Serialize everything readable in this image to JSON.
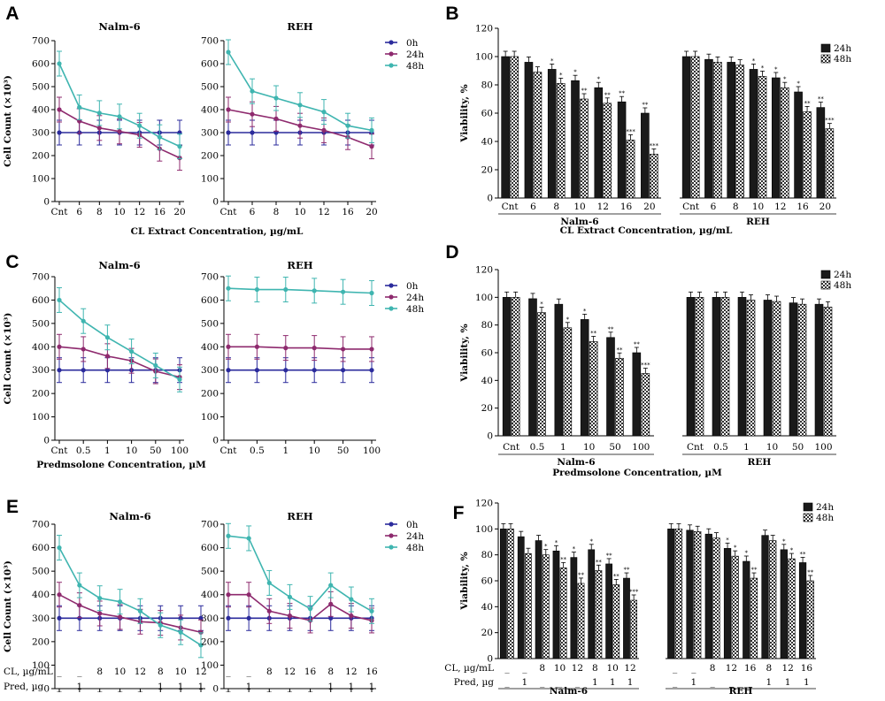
{
  "panels": {
    "A": {
      "label": "A",
      "xlabel": "CL Extract Concentration, µg/mL",
      "ylabel": "Cell Count (×10³)"
    },
    "B": {
      "label": "B",
      "xlabel": "CL Extract Concentration, µg/mL",
      "ylabel": "Viability, %"
    },
    "C": {
      "label": "C",
      "xlabel": "Predmsolone  Concentration, µM",
      "ylabel": "Cell Count (×10³)"
    },
    "D": {
      "label": "D",
      "xlabel": "Predmsolone  Concentration, µM",
      "ylabel": "Viability, %"
    },
    "E": {
      "label": "E",
      "xlabel": "",
      "ylabel": "Cell Count (×10³)",
      "row_labels": [
        "CL, µg/mL",
        "Pred, µg"
      ]
    },
    "F": {
      "label": "F",
      "xlabel": "",
      "ylabel": "Viability, %",
      "row_labels": [
        "CL, µg/mL",
        "Pred, µg"
      ]
    }
  },
  "colors": {
    "h0": "#2b2b9c",
    "h24": "#8e2a6e",
    "h48": "#3fb5b0",
    "bar24": "#1a1a1a",
    "bar48": "#8a8a8a"
  },
  "chart_data": [
    {
      "id": "A",
      "type": "line",
      "xlabel": "CL Extract Concentration, µg/mL",
      "ylabel": "Cell Count (×10³)",
      "ylim": [
        0,
        700
      ],
      "yticks": [
        0,
        100,
        200,
        300,
        400,
        500,
        600,
        700
      ],
      "legend_position": "right",
      "subplots": [
        {
          "title": "Nalm-6",
          "categories": [
            "Cnt",
            "6",
            "8",
            "10",
            "12",
            "16",
            "20"
          ],
          "series": [
            {
              "name": "0h",
              "values": [
                300,
                300,
                300,
                300,
                300,
                300,
                300
              ]
            },
            {
              "name": "24h",
              "values": [
                400,
                350,
                320,
                305,
                290,
                230,
                190
              ]
            },
            {
              "name": "48h",
              "values": [
                600,
                410,
                385,
                370,
                330,
                280,
                240
              ]
            }
          ]
        },
        {
          "title": "REH",
          "categories": [
            "Cnt",
            "6",
            "8",
            "10",
            "12",
            "16",
            "20"
          ],
          "series": [
            {
              "name": "0h",
              "values": [
                300,
                300,
                300,
                300,
                300,
                300,
                300
              ]
            },
            {
              "name": "24h",
              "values": [
                400,
                380,
                360,
                330,
                310,
                280,
                240
              ]
            },
            {
              "name": "48h",
              "values": [
                650,
                480,
                450,
                420,
                390,
                330,
                310
              ]
            }
          ]
        }
      ]
    },
    {
      "id": "B",
      "type": "bar",
      "xlabel": "CL Extract Concentration, µg/mL",
      "ylabel": "Viability, %",
      "ylim": [
        0,
        120
      ],
      "yticks": [
        0,
        20,
        40,
        60,
        80,
        100,
        120
      ],
      "legend_position": "top-right",
      "series_names": [
        "24h",
        "48h"
      ],
      "groups": [
        {
          "name": "Nalm-6",
          "categories": [
            "Cnt",
            "6",
            "8",
            "10",
            "12",
            "16",
            "20"
          ],
          "values24": [
            100,
            96,
            91,
            83,
            78,
            68,
            60
          ],
          "values48": [
            100,
            89,
            81,
            70,
            67,
            41,
            31
          ],
          "stars24": [
            "",
            "",
            "*",
            "*",
            "*",
            "**",
            "**"
          ],
          "stars48": [
            "",
            "",
            "*",
            "**",
            "**",
            "***",
            "***"
          ]
        },
        {
          "name": "REH",
          "categories": [
            "Cnt",
            "6",
            "8",
            "10",
            "12",
            "16",
            "20"
          ],
          "values24": [
            100,
            98,
            96,
            91,
            85,
            75,
            64
          ],
          "values48": [
            100,
            96,
            94,
            86,
            78,
            61,
            49
          ],
          "stars24": [
            "",
            "",
            "",
            "*",
            "*",
            "*",
            "**"
          ],
          "stars48": [
            "",
            "",
            "",
            "*",
            "*",
            "**",
            "***"
          ]
        }
      ]
    },
    {
      "id": "C",
      "type": "line",
      "xlabel": "Predmsolone  Concentration, µM",
      "ylabel": "Cell Count (×10³)",
      "ylim": [
        0,
        700
      ],
      "yticks": [
        0,
        100,
        200,
        300,
        400,
        500,
        600,
        700
      ],
      "legend_position": "right",
      "subplots": [
        {
          "title": "Nalm-6",
          "categories": [
            "Cnt",
            "0.5",
            "1",
            "10",
            "50",
            "100"
          ],
          "series": [
            {
              "name": "0h",
              "values": [
                300,
                300,
                300,
                300,
                300,
                300
              ]
            },
            {
              "name": "24h",
              "values": [
                400,
                390,
                360,
                340,
                295,
                270
              ]
            },
            {
              "name": "48h",
              "values": [
                600,
                510,
                440,
                380,
                320,
                260
              ]
            }
          ]
        },
        {
          "title": "REH",
          "categories": [
            "Cnt",
            "0.5",
            "1",
            "10",
            "50",
            "100"
          ],
          "series": [
            {
              "name": "0h",
              "values": [
                300,
                300,
                300,
                300,
                300,
                300
              ]
            },
            {
              "name": "24h",
              "values": [
                400,
                400,
                395,
                395,
                390,
                390
              ]
            },
            {
              "name": "48h",
              "values": [
                650,
                645,
                645,
                640,
                635,
                630
              ]
            }
          ]
        }
      ]
    },
    {
      "id": "D",
      "type": "bar",
      "xlabel": "Predmsolone  Concentration, µM",
      "ylabel": "Viability, %",
      "ylim": [
        0,
        120
      ],
      "yticks": [
        0,
        20,
        40,
        60,
        80,
        100,
        120
      ],
      "legend_position": "top-right",
      "series_names": [
        "24h",
        "48h"
      ],
      "groups": [
        {
          "name": "Nalm-6",
          "categories": [
            "Cnt",
            "0.5",
            "1",
            "10",
            "50",
            "100"
          ],
          "values24": [
            100,
            99,
            95,
            84,
            71,
            60
          ],
          "values48": [
            100,
            89,
            78,
            68,
            56,
            45
          ],
          "stars24": [
            "",
            "",
            "",
            "*",
            "**",
            "**"
          ],
          "stars48": [
            "",
            "*",
            "*",
            "**",
            "**",
            "***"
          ]
        },
        {
          "name": "REH",
          "categories": [
            "Cnt",
            "0.5",
            "1",
            "10",
            "50",
            "100"
          ],
          "values24": [
            100,
            100,
            100,
            98,
            96,
            95
          ],
          "values48": [
            100,
            100,
            98,
            97,
            95,
            93
          ],
          "stars24": [
            "",
            "",
            "",
            "",
            "",
            ""
          ],
          "stars48": [
            "",
            "",
            "",
            "",
            "",
            ""
          ]
        }
      ]
    },
    {
      "id": "E",
      "type": "line",
      "ylabel": "Cell Count (×10³)",
      "ylim": [
        0,
        700
      ],
      "yticks": [
        0,
        100,
        200,
        300,
        400,
        500,
        600,
        700
      ],
      "legend_position": "right",
      "subplots": [
        {
          "title": "Nalm-6",
          "cl": [
            "_",
            "_",
            "8",
            "10",
            "12",
            "8",
            "10",
            "12"
          ],
          "pred": [
            "_",
            "1",
            "_",
            "_",
            "_",
            "1",
            "1",
            "1"
          ],
          "series": [
            {
              "name": "0h",
              "values": [
                300,
                300,
                300,
                300,
                300,
                300,
                300,
                300
              ]
            },
            {
              "name": "24h",
              "values": [
                400,
                355,
                320,
                305,
                285,
                280,
                260,
                240
              ]
            },
            {
              "name": "48h",
              "values": [
                600,
                440,
                385,
                370,
                330,
                270,
                240,
                185
              ]
            }
          ]
        },
        {
          "title": "REH",
          "cl": [
            "_",
            "_",
            "8",
            "12",
            "16",
            "8",
            "12",
            "16"
          ],
          "pred": [
            "_",
            "1",
            "_",
            "_",
            "_",
            "1",
            "1",
            "1"
          ],
          "series": [
            {
              "name": "0h",
              "values": [
                300,
                300,
                300,
                300,
                300,
                300,
                300,
                300
              ]
            },
            {
              "name": "24h",
              "values": [
                400,
                400,
                330,
                310,
                290,
                360,
                310,
                290
              ]
            },
            {
              "name": "48h",
              "values": [
                650,
                640,
                450,
                390,
                340,
                440,
                380,
                330
              ]
            }
          ]
        }
      ]
    },
    {
      "id": "F",
      "type": "bar",
      "ylabel": "Viability, %",
      "ylim": [
        0,
        120
      ],
      "yticks": [
        0,
        20,
        40,
        60,
        80,
        100,
        120
      ],
      "legend_position": "top-right",
      "series_names": [
        "24h",
        "48h"
      ],
      "groups": [
        {
          "name": "Nalm-6",
          "cl": [
            "_",
            "_",
            "8",
            "10",
            "12",
            "8",
            "10",
            "12"
          ],
          "pred": [
            "_",
            "1",
            "_",
            "_",
            "_",
            "1",
            "1",
            "1"
          ],
          "values24": [
            100,
            94,
            91,
            83,
            78,
            84,
            73,
            62
          ],
          "values48": [
            100,
            81,
            80,
            70,
            58,
            68,
            57,
            45
          ],
          "stars24": [
            "",
            "",
            "",
            "*",
            "*",
            "*",
            "**",
            "**"
          ],
          "stars48": [
            "",
            "",
            "*",
            "**",
            "**",
            "**",
            "**",
            "***"
          ]
        },
        {
          "name": "REH",
          "cl": [
            "_",
            "_",
            "8",
            "12",
            "16",
            "8",
            "12",
            "16"
          ],
          "pred": [
            "_",
            "1",
            "_",
            "_",
            "_",
            "1",
            "1",
            "1"
          ],
          "values24": [
            100,
            99,
            96,
            85,
            75,
            95,
            84,
            74
          ],
          "values48": [
            100,
            98,
            93,
            79,
            62,
            91,
            77,
            60
          ],
          "stars24": [
            "",
            "",
            "",
            "*",
            "*",
            "",
            "*",
            "**"
          ],
          "stars48": [
            "",
            "",
            "",
            "*",
            "**",
            "",
            "*",
            "**"
          ]
        }
      ]
    }
  ]
}
